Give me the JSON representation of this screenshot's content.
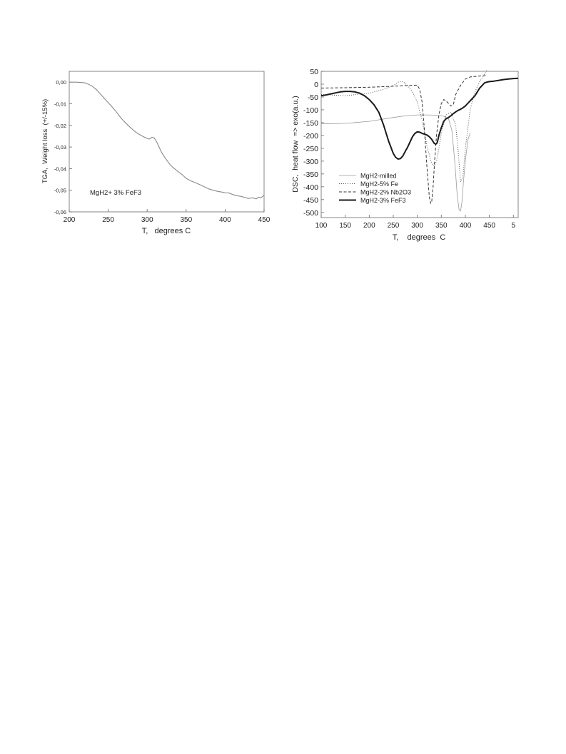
{
  "chart_data": [
    {
      "type": "line",
      "xlabel": "T,   degrees C",
      "ylabel": "TGA,  Weight loss  (+/-15%)",
      "xlim": [
        200,
        450
      ],
      "ylim": [
        -0.06,
        0.005
      ],
      "xticks": [
        "200",
        "250",
        "300",
        "350",
        "400",
        "450"
      ],
      "yticks": [
        "0,00",
        "-0,01",
        "-0,02",
        "-0,03",
        "-0,04",
        "-0,05",
        "-0,06"
      ],
      "annotation": "MgH2+ 3% FeF3",
      "series": [
        {
          "color": "#8a8a8a",
          "x": [
            200,
            210,
            220,
            225,
            230,
            235,
            240,
            245,
            250,
            255,
            260,
            265,
            270,
            275,
            280,
            285,
            290,
            295,
            300,
            303,
            306,
            309,
            312,
            315,
            318,
            322,
            326,
            330,
            335,
            340,
            345,
            350,
            355,
            360,
            365,
            370,
            375,
            380,
            385,
            390,
            395,
            400,
            405,
            410,
            415,
            420,
            425,
            430,
            435,
            440,
            443,
            446,
            450
          ],
          "y": [
            0.0,
            0.0,
            -0.0003,
            -0.001,
            -0.002,
            -0.0035,
            -0.0055,
            -0.0075,
            -0.0095,
            -0.0115,
            -0.0135,
            -0.016,
            -0.018,
            -0.0198,
            -0.0215,
            -0.023,
            -0.0242,
            -0.0252,
            -0.026,
            -0.0263,
            -0.0255,
            -0.0258,
            -0.0275,
            -0.0298,
            -0.0322,
            -0.0345,
            -0.0365,
            -0.0385,
            -0.04,
            -0.0415,
            -0.0428,
            -0.0445,
            -0.0455,
            -0.0462,
            -0.047,
            -0.0478,
            -0.0487,
            -0.0495,
            -0.05,
            -0.0505,
            -0.0508,
            -0.0512,
            -0.0513,
            -0.052,
            -0.0525,
            -0.0528,
            -0.0533,
            -0.0538,
            -0.0535,
            -0.054,
            -0.0532,
            -0.0535,
            -0.0523
          ]
        }
      ]
    },
    {
      "type": "line",
      "xlabel": "T,    degrees  C",
      "ylabel": "DSC,  heat flow  => exo(a.u.)",
      "xlim": [
        100,
        510
      ],
      "ylim": [
        -520,
        50
      ],
      "xticks": [
        "100",
        "150",
        "200",
        "250",
        "300",
        "350",
        "400",
        "450",
        "5"
      ],
      "yticks": [
        "50",
        "0",
        "-50",
        "-100",
        "-150",
        "-200",
        "-250",
        "-300",
        "-350",
        "-400",
        "-450",
        "-500"
      ],
      "legend_position": "bottom-left",
      "series": [
        {
          "name": "MgH2-milled",
          "style": "thin-solid",
          "color": "#9a9a9a",
          "x": [
            100,
            150,
            200,
            250,
            280,
            300,
            320,
            340,
            355,
            365,
            372,
            378,
            383,
            387,
            390,
            393,
            396,
            400,
            405,
            410
          ],
          "y": [
            -155,
            -153,
            -145,
            -130,
            -122,
            -120,
            -120,
            -121,
            -125,
            -135,
            -180,
            -300,
            -430,
            -490,
            -495,
            -460,
            -380,
            -300,
            -220,
            -190
          ]
        },
        {
          "name": "MgH2-5% Fe",
          "style": "dotted",
          "color": "#555555",
          "x": [
            100,
            150,
            200,
            230,
            250,
            262,
            270,
            280,
            290,
            300,
            310,
            320,
            330,
            335,
            340,
            345,
            350,
            360,
            370,
            380,
            385,
            390,
            395,
            400,
            410,
            420,
            430,
            440,
            445
          ],
          "y": [
            -40,
            -45,
            -35,
            -20,
            -5,
            10,
            10,
            -5,
            -30,
            -70,
            -140,
            -240,
            -310,
            -318,
            -300,
            -250,
            -190,
            -120,
            -110,
            -160,
            -260,
            -380,
            -360,
            -250,
            -100,
            -30,
            10,
            40,
            55
          ]
        },
        {
          "name": "MgH2-2% Nb2O3",
          "style": "dashed",
          "color": "#333333",
          "x": [
            100,
            150,
            200,
            250,
            280,
            300,
            305,
            310,
            315,
            320,
            325,
            328,
            330,
            333,
            336,
            340,
            345,
            350,
            355,
            360,
            365,
            370,
            375,
            380,
            390,
            400,
            410,
            420,
            430,
            440,
            445
          ],
          "y": [
            -15,
            -14,
            -12,
            -8,
            -5,
            -4,
            -20,
            -70,
            -180,
            -320,
            -440,
            -465,
            -460,
            -400,
            -300,
            -200,
            -120,
            -75,
            -60,
            -65,
            -75,
            -85,
            -80,
            -40,
            -5,
            20,
            28,
            30,
            32,
            33,
            33
          ]
        },
        {
          "name": "MgH2-3% FeF3",
          "style": "thick-solid",
          "color": "#1a1a1a",
          "x": [
            100,
            110,
            120,
            130,
            140,
            150,
            160,
            170,
            180,
            190,
            200,
            210,
            220,
            230,
            240,
            250,
            255,
            260,
            265,
            270,
            275,
            280,
            285,
            290,
            295,
            300,
            305,
            310,
            315,
            320,
            325,
            330,
            335,
            338,
            340,
            342,
            345,
            350,
            355,
            360,
            365,
            370,
            375,
            380,
            385,
            390,
            395,
            400,
            405,
            410,
            415,
            420,
            425,
            430,
            435,
            440,
            445,
            450,
            460,
            470,
            480,
            490,
            500,
            510
          ],
          "y": [
            -45,
            -42,
            -38,
            -34,
            -30,
            -28,
            -28,
            -30,
            -35,
            -45,
            -60,
            -80,
            -110,
            -160,
            -220,
            -270,
            -285,
            -292,
            -290,
            -280,
            -262,
            -245,
            -225,
            -205,
            -192,
            -186,
            -187,
            -192,
            -195,
            -198,
            -205,
            -215,
            -230,
            -234,
            -232,
            -225,
            -200,
            -170,
            -145,
            -135,
            -130,
            -123,
            -115,
            -108,
            -102,
            -98,
            -92,
            -85,
            -75,
            -65,
            -55,
            -45,
            -30,
            -15,
            -5,
            5,
            8,
            10,
            12,
            15,
            18,
            20,
            22,
            23
          ]
        }
      ]
    }
  ]
}
